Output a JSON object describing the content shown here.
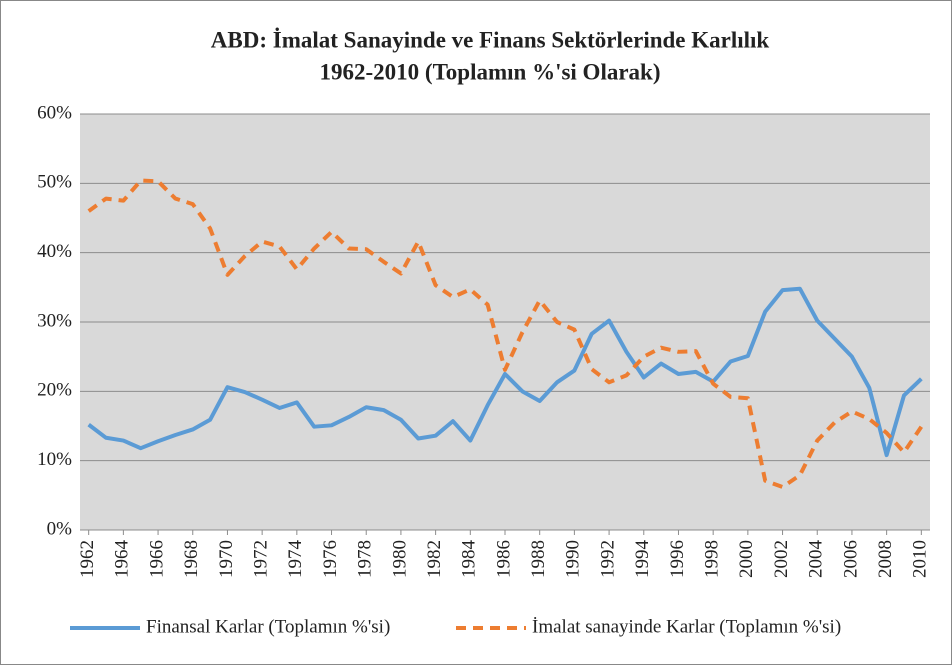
{
  "chart_data": {
    "type": "line",
    "title": "ABD: İmalat Sanayinde ve Finans Sektörlerinde Karlılık",
    "subtitle": "1962-2010  (Toplamın %'si Olarak)",
    "x": [
      1962,
      1963,
      1964,
      1965,
      1966,
      1967,
      1968,
      1969,
      1970,
      1971,
      1972,
      1973,
      1974,
      1975,
      1976,
      1977,
      1978,
      1979,
      1980,
      1981,
      1982,
      1983,
      1984,
      1985,
      1986,
      1987,
      1988,
      1989,
      1990,
      1991,
      1992,
      1993,
      1994,
      1995,
      1996,
      1997,
      1998,
      1999,
      2000,
      2001,
      2002,
      2003,
      2004,
      2005,
      2006,
      2007,
      2008,
      2009,
      2010
    ],
    "xlim": [
      1961.5,
      2010.5
    ],
    "xticks": [
      1962,
      1964,
      1966,
      1968,
      1970,
      1972,
      1974,
      1976,
      1978,
      1980,
      1982,
      1984,
      1986,
      1988,
      1990,
      1992,
      1994,
      1996,
      1998,
      2000,
      2002,
      2004,
      2006,
      2008,
      2010
    ],
    "ylim": [
      0,
      60
    ],
    "yticks": [
      {
        "value": 0,
        "label": "0%"
      },
      {
        "value": 10,
        "label": "10%"
      },
      {
        "value": 20,
        "label": "20%"
      },
      {
        "value": 30,
        "label": "30%"
      },
      {
        "value": 40,
        "label": "40%"
      },
      {
        "value": 50,
        "label": "50%"
      },
      {
        "value": 60,
        "label": "60%"
      }
    ],
    "grid": true,
    "legend": "bottom",
    "series": [
      {
        "name": "Finansal Karlar (Toplamın %'si)",
        "color": "#5b9bd5",
        "line_style": "solid",
        "values": [
          15.2,
          13.3,
          12.9,
          11.8,
          12.8,
          13.7,
          14.5,
          15.9,
          20.6,
          19.9,
          18.8,
          17.6,
          18.4,
          14.9,
          15.1,
          16.3,
          17.7,
          17.3,
          15.9,
          13.2,
          13.6,
          15.7,
          12.9,
          18.0,
          22.5,
          20.0,
          18.6,
          21.3,
          23.0,
          28.3,
          30.2,
          25.7,
          22.0,
          24.0,
          22.5,
          22.8,
          21.4,
          24.3,
          25.1,
          31.5,
          34.6,
          34.8,
          30.2,
          27.6,
          25.0,
          20.5,
          10.8,
          19.4,
          21.8
        ]
      },
      {
        "name": "İmalat sanayinde Karlar (Toplamın %'si)",
        "color": "#ed7d31",
        "line_style": "dashed",
        "values": [
          46.0,
          47.8,
          47.5,
          50.4,
          50.3,
          47.8,
          47.0,
          43.5,
          36.8,
          39.5,
          41.6,
          40.9,
          37.6,
          40.6,
          43.0,
          40.6,
          40.5,
          38.7,
          37.0,
          41.6,
          35.3,
          33.6,
          34.7,
          32.5,
          23.1,
          28.5,
          33.1,
          30.0,
          28.9,
          23.2,
          21.3,
          22.3,
          25.0,
          26.3,
          25.7,
          25.8,
          21.1,
          19.2,
          19.0,
          7.1,
          6.2,
          7.9,
          12.9,
          15.5,
          17.1,
          16.0,
          14.0,
          11.2,
          14.9
        ]
      }
    ]
  }
}
